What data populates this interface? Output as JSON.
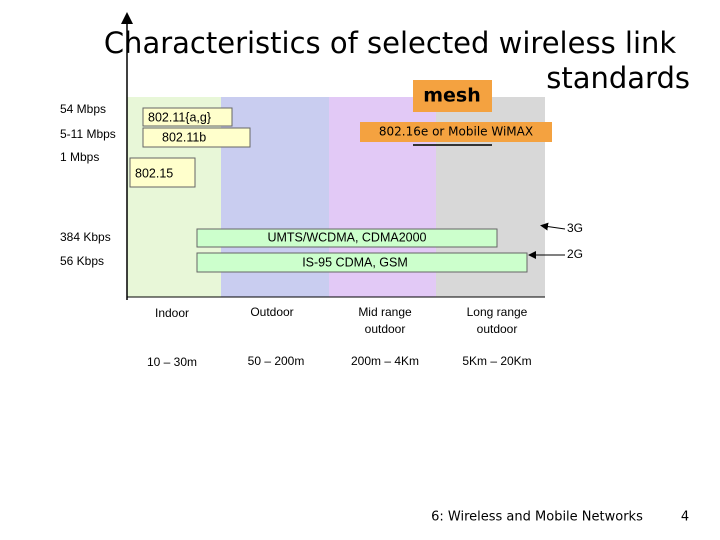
{
  "title": {
    "line1": "Characteristics of selected wireless link",
    "line2": "standards"
  },
  "rates": [
    "54 Mbps",
    "5-11 Mbps",
    "1 Mbps",
    "384 Kbps",
    "56 Kbps"
  ],
  "standards": {
    "wifi_ag": "802.11{a,g}",
    "wifi_b": "802.11b",
    "bt": "802.15",
    "mesh": "mesh",
    "wimax": "802.16e or Mobile WiMAX",
    "umts": "UMTS/WCDMA, CDMA2000",
    "is95": "IS-95 CDMA, GSM"
  },
  "generations": [
    "3G",
    "2G"
  ],
  "environments": [
    [
      "Indoor"
    ],
    [
      "Outdoor"
    ],
    [
      "Mid range",
      "outdoor"
    ],
    [
      "Long range",
      "outdoor"
    ]
  ],
  "distances": [
    "10 – 30m",
    "50 – 200m",
    "200m – 4Km",
    "5Km – 20Km"
  ],
  "footer": {
    "course": "6: Wireless and Mobile Networks",
    "page": "4"
  }
}
